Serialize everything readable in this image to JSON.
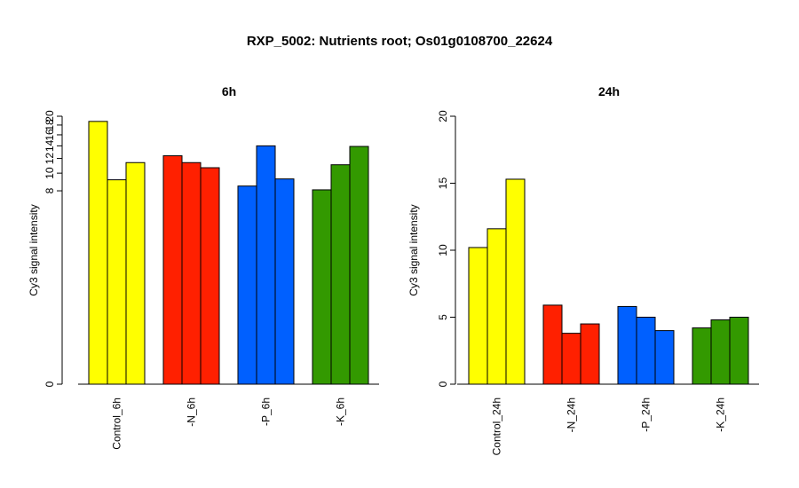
{
  "title": "RXP_5002: Nutrients root; Os01g0108700_22624",
  "chart_data": [
    {
      "type": "bar",
      "title": "6h",
      "xlabel": "",
      "ylabel": "Cy3 signal intensity",
      "scale": "log",
      "ylim": [
        0,
        20
      ],
      "yticks": [
        0,
        8,
        10,
        12,
        14,
        16,
        18,
        20
      ],
      "categories": [
        "Control_6h",
        "-N_6h",
        "-P_6h",
        "-K_6h"
      ],
      "colors": [
        "#ffff00",
        "#ff2000",
        "#0060ff",
        "#339900"
      ],
      "values": [
        [
          18.8,
          9.2,
          11.4
        ],
        [
          12.4,
          11.4,
          10.7
        ],
        [
          8.5,
          14.0,
          9.3
        ],
        [
          8.1,
          11.1,
          13.9
        ]
      ],
      "grid": false,
      "legend": "none"
    },
    {
      "type": "bar",
      "title": "24h",
      "xlabel": "",
      "ylabel": "Cy3 signal intensity",
      "scale": "linear",
      "ylim": [
        0,
        20
      ],
      "yticks": [
        0,
        5,
        10,
        15,
        20
      ],
      "categories": [
        "Control_24h",
        "-N_24h",
        "-P_24h",
        "-K_24h"
      ],
      "colors": [
        "#ffff00",
        "#ff2000",
        "#0060ff",
        "#339900"
      ],
      "values": [
        [
          10.2,
          11.6,
          15.3
        ],
        [
          5.9,
          3.8,
          4.5
        ],
        [
          5.8,
          5.0,
          4.0
        ],
        [
          4.2,
          4.8,
          5.0
        ]
      ],
      "grid": false,
      "legend": "none"
    }
  ]
}
